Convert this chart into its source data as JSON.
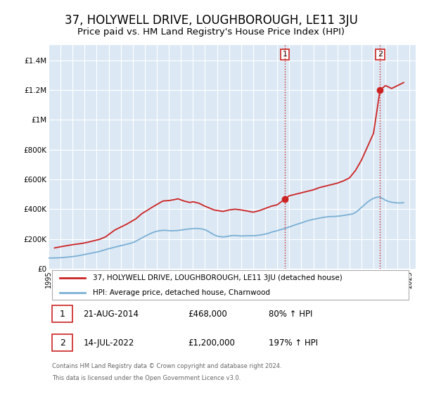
{
  "title": "37, HOLYWELL DRIVE, LOUGHBOROUGH, LE11 3JU",
  "subtitle": "Price paid vs. HM Land Registry's House Price Index (HPI)",
  "title_fontsize": 12,
  "subtitle_fontsize": 9.5,
  "background_color": "#ffffff",
  "chart_bg_color": "#dce9f5",
  "grid_color": "#ffffff",
  "hpi_color": "#7bafd4",
  "property_color": "#cc2222",
  "ylim": [
    0,
    1500000
  ],
  "xlim_start": 1995.0,
  "xlim_end": 2025.5,
  "yticks": [
    0,
    200000,
    400000,
    600000,
    800000,
    1000000,
    1200000,
    1400000
  ],
  "ytick_labels": [
    "£0",
    "£200K",
    "£400K",
    "£600K",
    "£800K",
    "£1M",
    "£1.2M",
    "£1.4M"
  ],
  "xtick_years": [
    1995,
    1996,
    1997,
    1998,
    1999,
    2000,
    2001,
    2002,
    2003,
    2004,
    2005,
    2006,
    2007,
    2008,
    2009,
    2010,
    2011,
    2012,
    2013,
    2014,
    2015,
    2016,
    2017,
    2018,
    2019,
    2020,
    2021,
    2022,
    2023,
    2024,
    2025
  ],
  "transaction1": {
    "date": "21-AUG-2014",
    "year": 2014.64,
    "price": 468000,
    "label": "1",
    "pct": "80%"
  },
  "transaction2": {
    "date": "14-JUL-2022",
    "year": 2022.54,
    "price": 1200000,
    "label": "2",
    "pct": "197%"
  },
  "legend_property": "37, HOLYWELL DRIVE, LOUGHBOROUGH, LE11 3JU (detached house)",
  "legend_hpi": "HPI: Average price, detached house, Charnwood",
  "footer1": "Contains HM Land Registry data © Crown copyright and database right 2024.",
  "footer2": "This data is licensed under the Open Government Licence v3.0.",
  "hpi_data_x": [
    1995.0,
    1995.25,
    1995.5,
    1995.75,
    1996.0,
    1996.25,
    1996.5,
    1996.75,
    1997.0,
    1997.25,
    1997.5,
    1997.75,
    1998.0,
    1998.25,
    1998.5,
    1998.75,
    1999.0,
    1999.25,
    1999.5,
    1999.75,
    2000.0,
    2000.25,
    2000.5,
    2000.75,
    2001.0,
    2001.25,
    2001.5,
    2001.75,
    2002.0,
    2002.25,
    2002.5,
    2002.75,
    2003.0,
    2003.25,
    2003.5,
    2003.75,
    2004.0,
    2004.25,
    2004.5,
    2004.75,
    2005.0,
    2005.25,
    2005.5,
    2005.75,
    2006.0,
    2006.25,
    2006.5,
    2006.75,
    2007.0,
    2007.25,
    2007.5,
    2007.75,
    2008.0,
    2008.25,
    2008.5,
    2008.75,
    2009.0,
    2009.25,
    2009.5,
    2009.75,
    2010.0,
    2010.25,
    2010.5,
    2010.75,
    2011.0,
    2011.25,
    2011.5,
    2011.75,
    2012.0,
    2012.25,
    2012.5,
    2012.75,
    2013.0,
    2013.25,
    2013.5,
    2013.75,
    2014.0,
    2014.25,
    2014.5,
    2014.75,
    2015.0,
    2015.25,
    2015.5,
    2015.75,
    2016.0,
    2016.25,
    2016.5,
    2016.75,
    2017.0,
    2017.25,
    2017.5,
    2017.75,
    2018.0,
    2018.25,
    2018.5,
    2018.75,
    2019.0,
    2019.25,
    2019.5,
    2019.75,
    2020.0,
    2020.25,
    2020.5,
    2020.75,
    2021.0,
    2021.25,
    2021.5,
    2021.75,
    2022.0,
    2022.25,
    2022.5,
    2022.75,
    2023.0,
    2023.25,
    2023.5,
    2023.75,
    2024.0,
    2024.25,
    2024.5
  ],
  "hpi_data_y": [
    72000,
    72500,
    73000,
    73500,
    74500,
    76000,
    78000,
    80000,
    82000,
    85000,
    88000,
    92000,
    96000,
    100000,
    104000,
    108000,
    112000,
    117000,
    123000,
    129000,
    135000,
    140000,
    145000,
    150000,
    155000,
    160000,
    165000,
    170000,
    176000,
    185000,
    196000,
    207000,
    218000,
    228000,
    238000,
    246000,
    252000,
    256000,
    258000,
    258000,
    256000,
    255000,
    256000,
    257000,
    260000,
    263000,
    266000,
    268000,
    270000,
    271000,
    270000,
    267000,
    262000,
    252000,
    240000,
    228000,
    220000,
    216000,
    214000,
    216000,
    220000,
    223000,
    224000,
    222000,
    220000,
    221000,
    222000,
    222000,
    222000,
    223000,
    226000,
    229000,
    233000,
    238000,
    245000,
    251000,
    256000,
    262000,
    268000,
    274000,
    281000,
    288000,
    295000,
    302000,
    308000,
    315000,
    322000,
    327000,
    332000,
    336000,
    340000,
    344000,
    347000,
    350000,
    351000,
    351000,
    353000,
    355000,
    358000,
    361000,
    365000,
    368000,
    378000,
    394000,
    412000,
    430000,
    448000,
    462000,
    473000,
    480000,
    482000,
    472000,
    460000,
    452000,
    447000,
    444000,
    442000,
    442000,
    444000
  ],
  "property_data_x": [
    1995.5,
    1996.0,
    1996.5,
    1997.0,
    1997.75,
    1998.25,
    1999.25,
    1999.75,
    2000.5,
    2001.0,
    2001.5,
    2002.25,
    2002.75,
    2003.25,
    2003.75,
    2004.5,
    2005.0,
    2005.5,
    2005.75,
    2006.25,
    2006.75,
    2007.0,
    2007.5,
    2008.0,
    2008.75,
    2009.5,
    2010.0,
    2010.5,
    2011.0,
    2011.5,
    2012.0,
    2012.5,
    2013.0,
    2013.5,
    2014.0,
    2014.64,
    2015.0,
    2015.5,
    2016.0,
    2016.5,
    2017.0,
    2017.5,
    2018.0,
    2018.5,
    2019.0,
    2019.5,
    2020.0,
    2020.5,
    2021.0,
    2021.5,
    2022.0,
    2022.54,
    2023.0,
    2023.5,
    2024.0,
    2024.5
  ],
  "property_data_y": [
    140000,
    148000,
    155000,
    162000,
    170000,
    178000,
    198000,
    215000,
    260000,
    280000,
    300000,
    335000,
    370000,
    395000,
    420000,
    455000,
    458000,
    465000,
    470000,
    455000,
    445000,
    450000,
    440000,
    420000,
    395000,
    385000,
    395000,
    400000,
    395000,
    388000,
    380000,
    390000,
    405000,
    420000,
    430000,
    468000,
    490000,
    500000,
    510000,
    520000,
    530000,
    545000,
    555000,
    565000,
    575000,
    590000,
    610000,
    660000,
    730000,
    820000,
    910000,
    1200000,
    1230000,
    1210000,
    1230000,
    1250000
  ]
}
